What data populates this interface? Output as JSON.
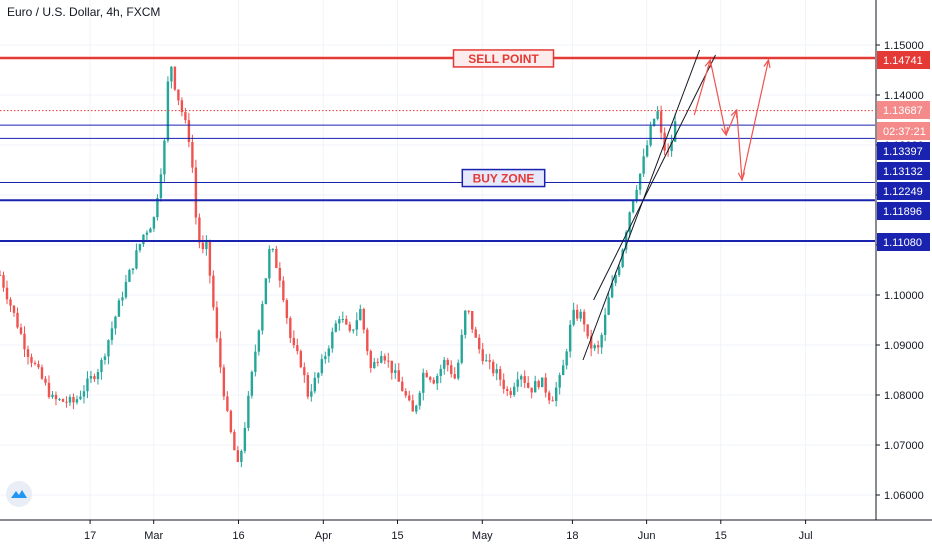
{
  "header": {
    "title": "Euro / U.S. Dollar, 4h, FXCM"
  },
  "colors": {
    "up": "#26a69a",
    "down": "#ef5350",
    "sell_line": "#e53935",
    "buy_line": "#1a23b0",
    "channel": "#131722",
    "arrow": "#ef5350",
    "axis_text": "#131722",
    "badge_red": "#e53935",
    "badge_pink": "#f48a8a",
    "badge_blue": "#1a23b0"
  },
  "icons": {
    "logo": "tradingview-logo-icon"
  },
  "chart_data": {
    "type": "candlestick",
    "symbol": "Euro / U.S. Dollar",
    "timeframe": "4h",
    "source": "FXCM",
    "ylim": [
      1.0555,
      1.1555
    ],
    "y_ticks": [
      "1.06000",
      "1.07000",
      "1.08000",
      "1.09000",
      "1.10000",
      "1.11000",
      "1.12000",
      "1.13000",
      "1.14000",
      "1.15000"
    ],
    "x_ticks": [
      "17",
      "Mar",
      "16",
      "Apr",
      "15",
      "May",
      "18",
      "Jun",
      "15",
      "Jul"
    ],
    "x_tick_days": [
      17,
      29,
      45,
      61,
      75,
      91,
      108,
      122,
      136,
      152
    ],
    "x_range_days": [
      0,
      165
    ],
    "price_path": [
      [
        0,
        1.104
      ],
      [
        5,
        1.089
      ],
      [
        10,
        1.079
      ],
      [
        14,
        1.0785
      ],
      [
        19,
        1.086
      ],
      [
        23,
        1.1
      ],
      [
        27,
        1.112
      ],
      [
        29,
        1.115
      ],
      [
        31,
        1.13
      ],
      [
        32,
        1.148
      ],
      [
        33,
        1.142
      ],
      [
        36,
        1.13
      ],
      [
        37,
        1.115
      ],
      [
        38,
        1.108
      ],
      [
        39,
        1.11
      ],
      [
        41,
        1.09
      ],
      [
        43,
        1.075
      ],
      [
        45,
        1.065
      ],
      [
        47,
        1.08
      ],
      [
        49,
        1.095
      ],
      [
        51,
        1.11
      ],
      [
        53,
        1.103
      ],
      [
        55,
        1.09
      ],
      [
        57,
        1.086
      ],
      [
        58,
        1.08
      ],
      [
        60,
        1.084
      ],
      [
        62,
        1.09
      ],
      [
        64,
        1.096
      ],
      [
        66,
        1.092
      ],
      [
        68,
        1.097
      ],
      [
        70,
        1.085
      ],
      [
        72,
        1.089
      ],
      [
        74,
        1.085
      ],
      [
        76,
        1.081
      ],
      [
        78,
        1.076
      ],
      [
        80,
        1.085
      ],
      [
        82,
        1.083
      ],
      [
        84,
        1.087
      ],
      [
        86,
        1.083
      ],
      [
        88,
        1.098
      ],
      [
        90,
        1.09
      ],
      [
        92,
        1.086
      ],
      [
        94,
        1.084
      ],
      [
        96,
        1.08
      ],
      [
        98,
        1.085
      ],
      [
        100,
        1.081
      ],
      [
        102,
        1.083
      ],
      [
        104,
        1.079
      ],
      [
        106,
        1.084
      ],
      [
        108,
        1.096
      ],
      [
        110,
        1.096
      ],
      [
        111,
        1.09
      ],
      [
        113,
        1.089
      ],
      [
        115,
        1.1
      ],
      [
        117,
        1.107
      ],
      [
        119,
        1.118
      ],
      [
        121,
        1.125
      ],
      [
        123,
        1.134
      ],
      [
        124,
        1.137
      ],
      [
        125,
        1.13
      ],
      [
        126,
        1.128
      ],
      [
        127,
        1.132
      ],
      [
        128,
        1.138
      ]
    ],
    "horizontal_lines": [
      {
        "label": "SELL POINT",
        "price": 1.14741,
        "price_label": "1.14741",
        "color": "#e53935",
        "style": "solid",
        "width": 2.5
      },
      {
        "price": 1.13687,
        "price_label": "1.13687",
        "color": "#e53935",
        "style": "dotted",
        "width": 1
      },
      {
        "price": 1.13397,
        "price_label": "1.13397",
        "color": "#1a23b0",
        "style": "solid",
        "width": 1
      },
      {
        "price": 1.13132,
        "price_label": "1.13132",
        "color": "#1a23b0",
        "style": "solid",
        "width": 1
      },
      {
        "price": 1.12249,
        "price_label": "1.12249",
        "color": "#1a23b0",
        "style": "solid",
        "width": 1
      },
      {
        "label": "BUY ZONE",
        "price": 1.11896,
        "price_label": "1.11896",
        "color": "#1a23b0",
        "style": "solid",
        "width": 2
      },
      {
        "price": 1.1108,
        "price_label": "1.11080",
        "color": "#1a23b0",
        "style": "solid",
        "width": 2
      }
    ],
    "countdown": "02:37:21",
    "annotations": [
      {
        "type": "text_box",
        "text": "SELL POINT",
        "price": 1.14741,
        "day": 95
      },
      {
        "type": "text_box",
        "text": "BUY ZONE",
        "price": 1.12249,
        "day": 95
      }
    ],
    "channel": [
      {
        "from": [
          110,
          1.087
        ],
        "to": [
          132,
          1.149
        ]
      },
      {
        "from": [
          112,
          1.099
        ],
        "to": [
          135,
          1.148
        ]
      }
    ],
    "projection_path": [
      [
        131,
        1.136
      ],
      [
        134,
        1.147
      ],
      [
        137,
        1.132
      ],
      [
        139,
        1.137
      ],
      [
        140,
        1.123
      ],
      [
        145,
        1.147
      ]
    ]
  }
}
